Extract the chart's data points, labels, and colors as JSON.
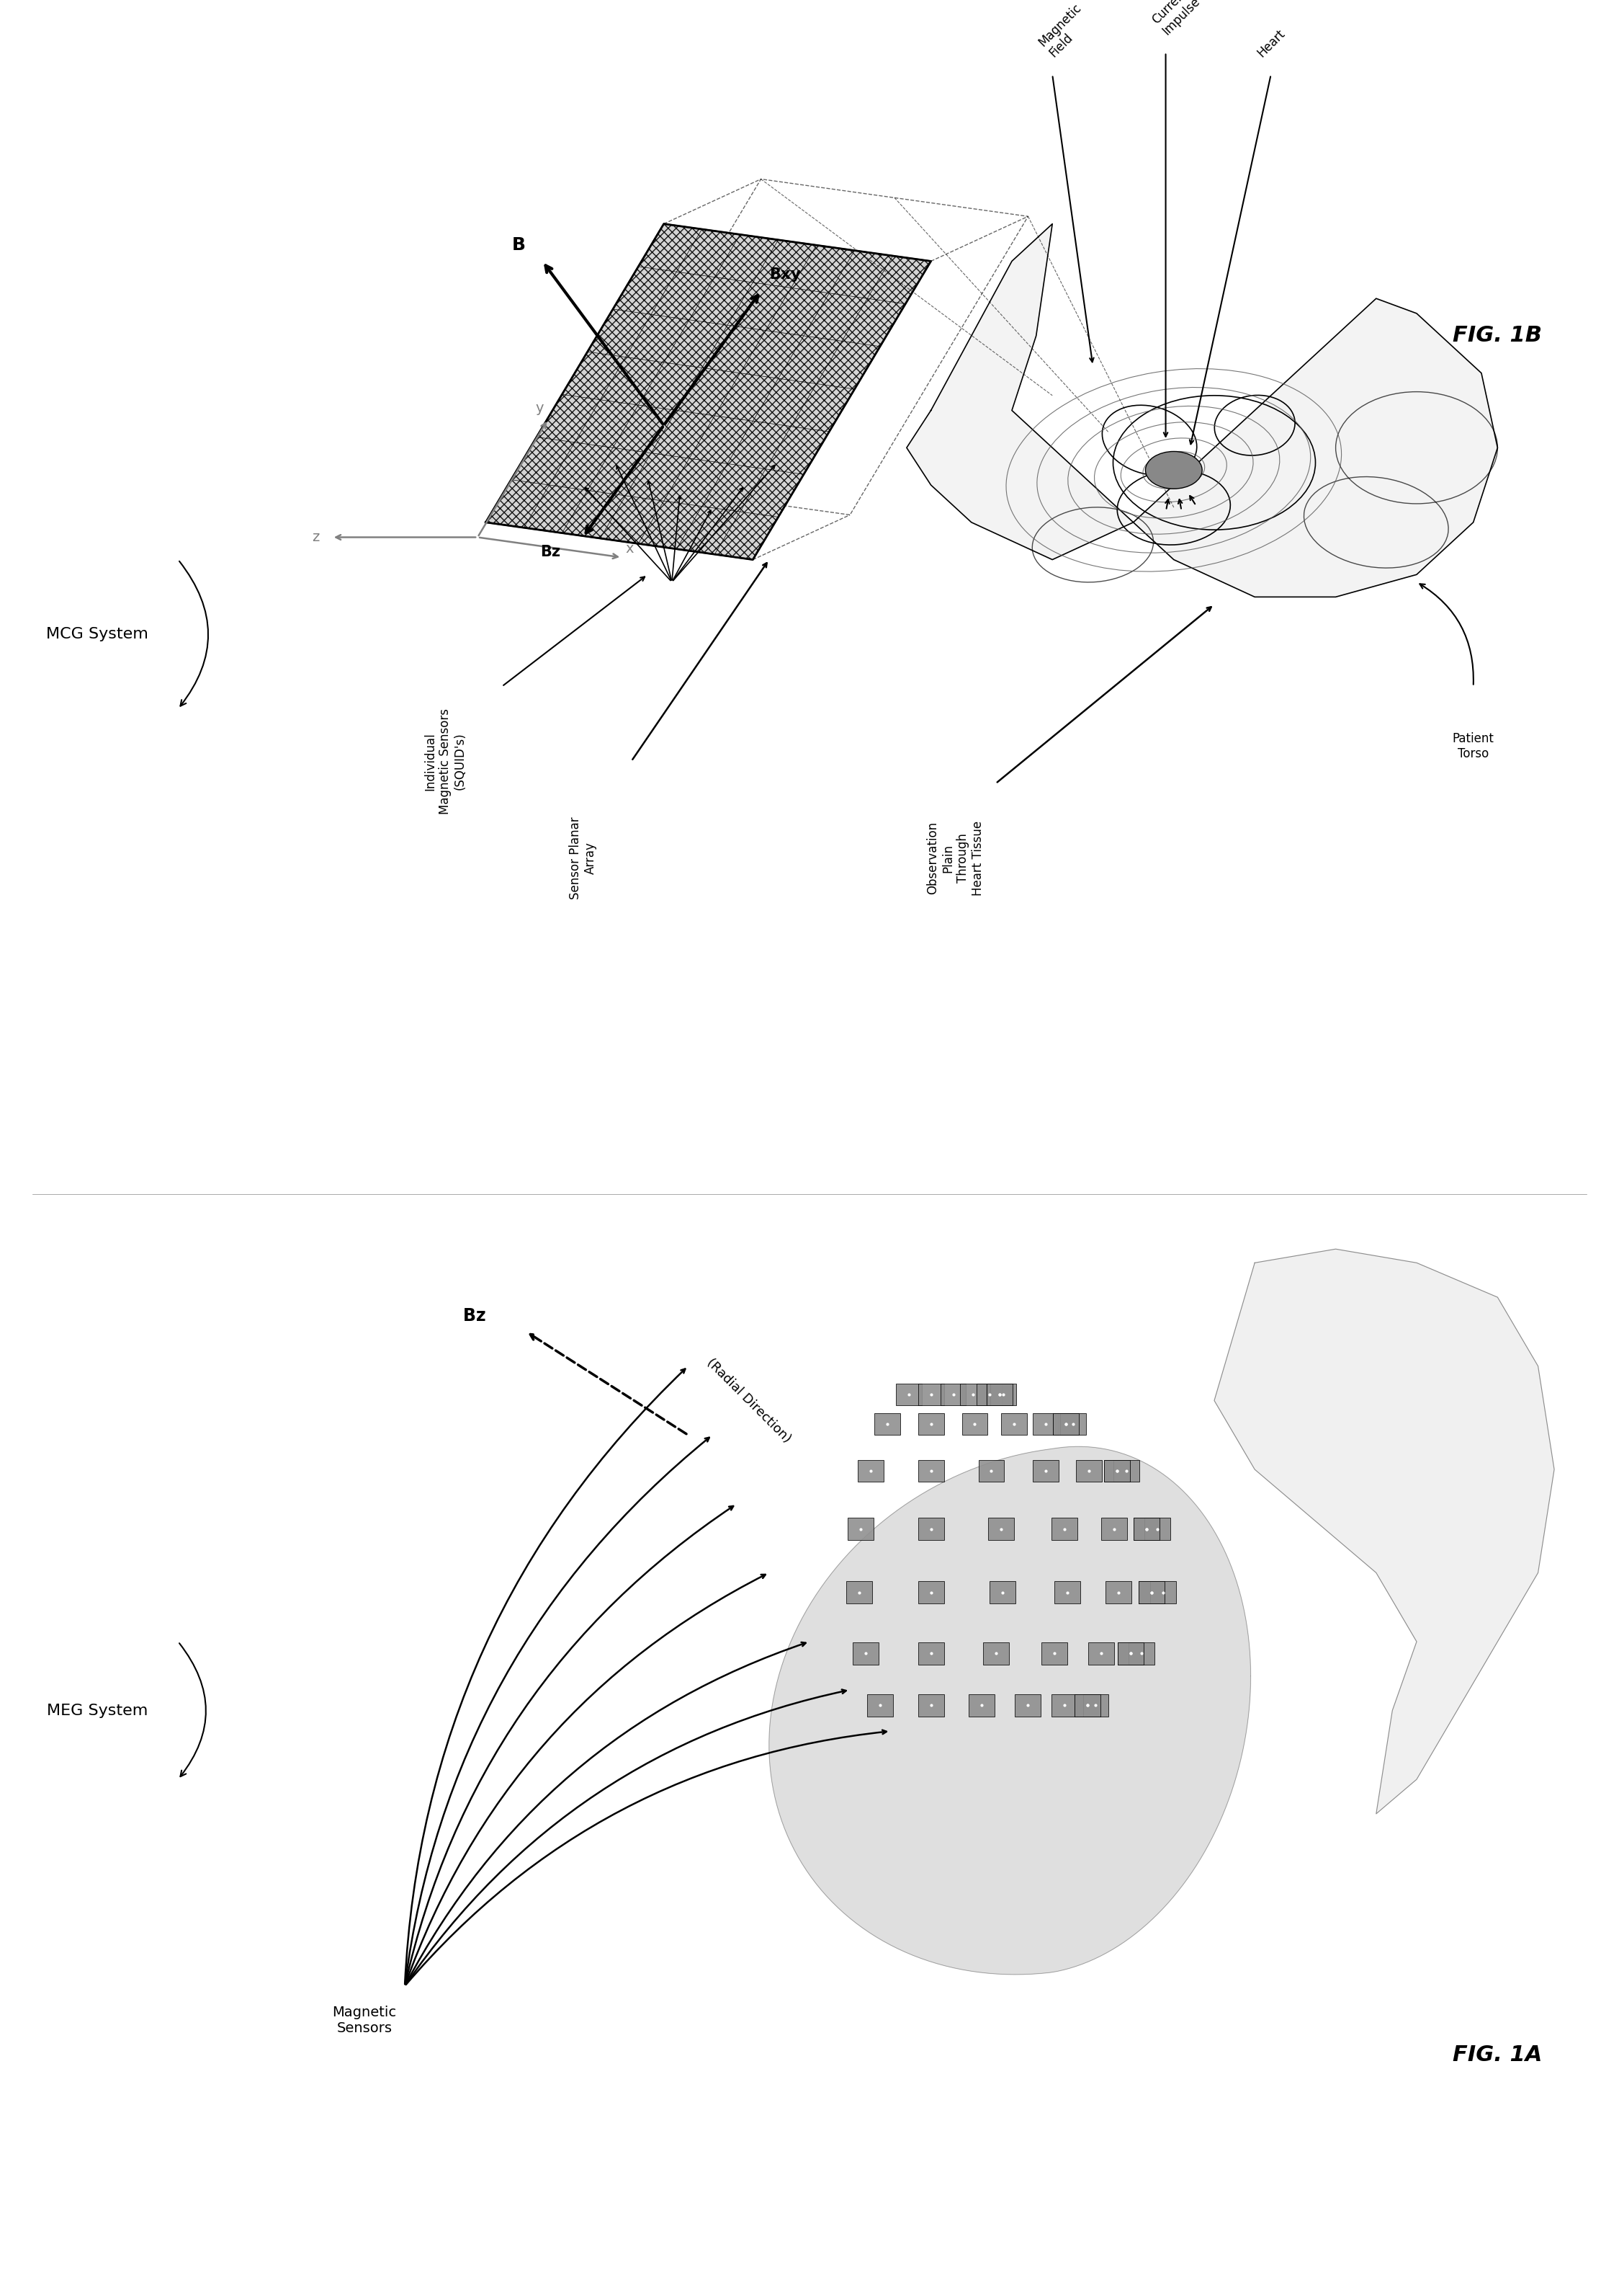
{
  "fig_width": 22.48,
  "fig_height": 31.86,
  "background_color": "#ffffff",
  "fig1a_label": "FIG. 1A",
  "fig1b_label": "FIG. 1B",
  "meg_system_label": "MEG System",
  "mcg_system_label": "MCG System",
  "meg_bz_label": "$\\mathbf{Bz}$",
  "meg_radial_label": "(Radial Direction)",
  "meg_magnetic_sensors_label": "Magnetic\nSensors",
  "mcg_magnetic_field_label": "Magnetic\nField",
  "mcg_current_impulse_label": "Current\nImpulse",
  "mcg_heart_label": "Heart",
  "mcg_individual_sensors_label": "Individual\nMagnetic Sensors\n(SQUID's)",
  "mcg_sensor_array_label": "Sensor Planar\nArray",
  "mcg_observation_label": "Observation\nPlain\nThrough\nHeart Tissue",
  "mcg_patient_torso_label": "Patient\nTorso",
  "mcg_B_label": "$\\mathbf{B}$",
  "mcg_Bxy_label": "$\\mathbf{Bxy}$",
  "mcg_Bz_label": "$\\mathbf{Bz}$",
  "mcg_x_label": "x",
  "mcg_y_label": "y",
  "mcg_z_label": "z"
}
